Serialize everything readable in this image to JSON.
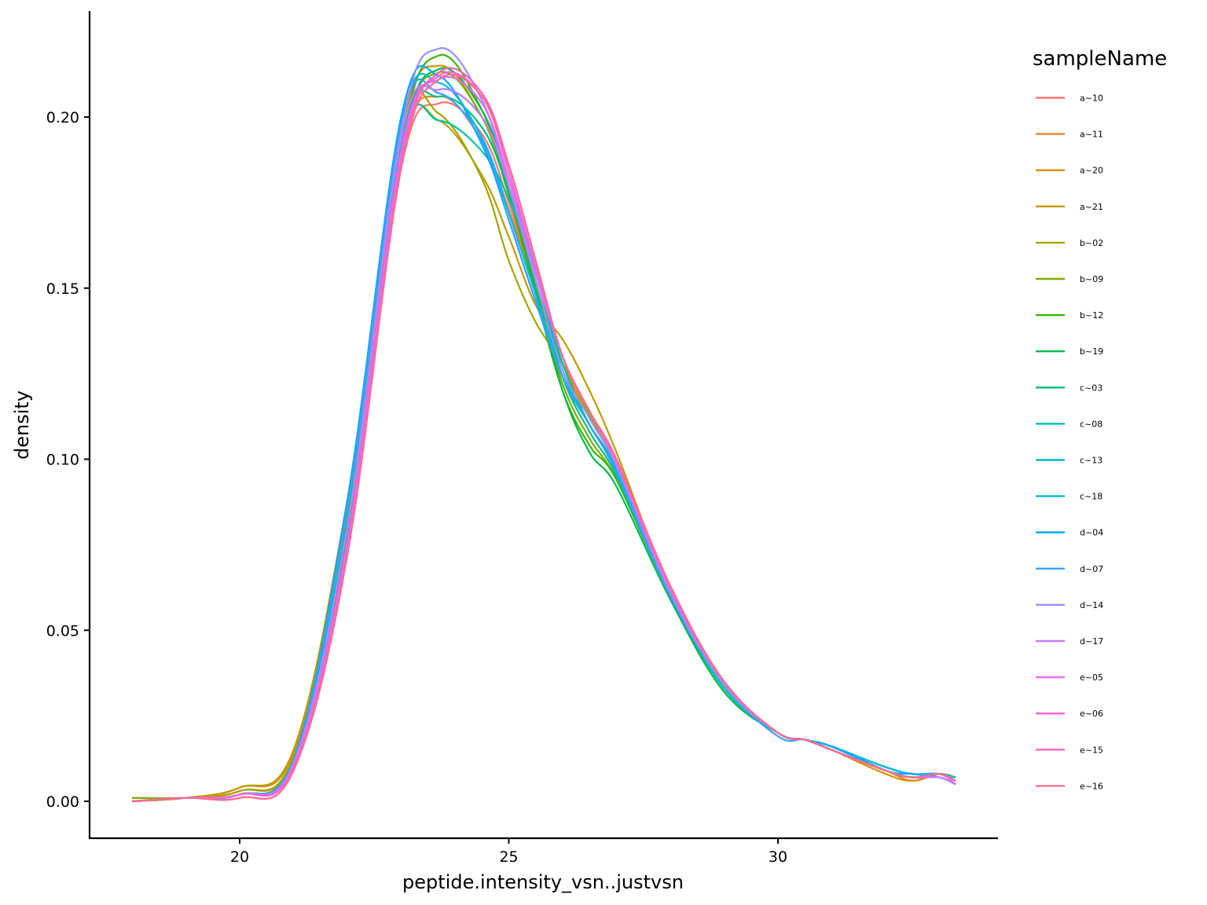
{
  "chart_data": {
    "type": "line",
    "subtype": "density",
    "title": "",
    "xlabel": "peptide.intensity_vsn..justvsn",
    "ylabel": "density",
    "xlim": [
      17.2,
      34.0
    ],
    "ylim": [
      -0.011,
      0.232
    ],
    "x_range_data": [
      18.0,
      33.3
    ],
    "xticks": [
      20,
      25,
      30
    ],
    "xtick_labels": [
      "20",
      "25",
      "30"
    ],
    "yticks": [
      0.0,
      0.05,
      0.1,
      0.15,
      0.2
    ],
    "ytick_labels": [
      "0.00",
      "0.05",
      "0.10",
      "0.15",
      "0.20"
    ],
    "grid": false,
    "legend": {
      "title": "sampleName",
      "position": "right"
    },
    "x": [
      18.0,
      19.0,
      20.0,
      21.0,
      22.0,
      23.0,
      23.7,
      24.5,
      25.0,
      25.5,
      26.0,
      26.5,
      27.0,
      28.0,
      29.0,
      30.0,
      30.5,
      31.0,
      32.0,
      32.5,
      33.0,
      33.3
    ],
    "series": [
      {
        "name": "a~10",
        "color": "#F8766D",
        "values": [
          0.0,
          0.001,
          0.002,
          0.01,
          0.075,
          0.185,
          0.204,
          0.195,
          0.175,
          0.15,
          0.128,
          0.112,
          0.098,
          0.062,
          0.035,
          0.02,
          0.018,
          0.015,
          0.009,
          0.007,
          0.008,
          0.006
        ]
      },
      {
        "name": "a~11",
        "color": "#EA8331",
        "values": [
          0.0,
          0.001,
          0.003,
          0.012,
          0.08,
          0.188,
          0.206,
          0.193,
          0.173,
          0.15,
          0.128,
          0.112,
          0.098,
          0.062,
          0.034,
          0.02,
          0.018,
          0.015,
          0.009,
          0.006,
          0.008,
          0.006
        ]
      },
      {
        "name": "a~20",
        "color": "#D89000",
        "values": [
          0.0,
          0.001,
          0.004,
          0.014,
          0.085,
          0.195,
          0.215,
          0.2,
          0.178,
          0.152,
          0.128,
          0.112,
          0.098,
          0.062,
          0.034,
          0.02,
          0.018,
          0.015,
          0.008,
          0.006,
          0.008,
          0.006
        ]
      },
      {
        "name": "a~21",
        "color": "#C09B00",
        "values": [
          0.0,
          0.001,
          0.004,
          0.015,
          0.088,
          0.192,
          0.199,
          0.183,
          0.165,
          0.145,
          0.135,
          0.12,
          0.102,
          0.062,
          0.034,
          0.02,
          0.018,
          0.016,
          0.009,
          0.007,
          0.008,
          0.006
        ]
      },
      {
        "name": "b~02",
        "color": "#A3A500",
        "values": [
          0.001,
          0.001,
          0.003,
          0.013,
          0.085,
          0.196,
          0.201,
          0.182,
          0.158,
          0.14,
          0.128,
          0.113,
          0.098,
          0.062,
          0.034,
          0.02,
          0.018,
          0.015,
          0.009,
          0.007,
          0.008,
          0.006
        ]
      },
      {
        "name": "b~09",
        "color": "#7CAE00",
        "values": [
          0.001,
          0.001,
          0.002,
          0.011,
          0.078,
          0.19,
          0.213,
          0.2,
          0.177,
          0.15,
          0.122,
          0.106,
          0.094,
          0.06,
          0.033,
          0.02,
          0.018,
          0.016,
          0.009,
          0.007,
          0.008,
          0.007
        ]
      },
      {
        "name": "b~12",
        "color": "#39B600",
        "values": [
          0.0,
          0.001,
          0.002,
          0.011,
          0.078,
          0.192,
          0.218,
          0.202,
          0.178,
          0.148,
          0.12,
          0.104,
          0.094,
          0.06,
          0.033,
          0.02,
          0.018,
          0.016,
          0.009,
          0.007,
          0.008,
          0.007
        ]
      },
      {
        "name": "b~19",
        "color": "#00BB4E",
        "values": [
          0.0,
          0.001,
          0.002,
          0.011,
          0.078,
          0.19,
          0.214,
          0.202,
          0.18,
          0.15,
          0.12,
          0.102,
          0.092,
          0.059,
          0.032,
          0.02,
          0.018,
          0.016,
          0.009,
          0.007,
          0.008,
          0.007
        ]
      },
      {
        "name": "c~03",
        "color": "#00BF7D",
        "values": [
          0.0,
          0.001,
          0.002,
          0.011,
          0.08,
          0.193,
          0.206,
          0.197,
          0.178,
          0.152,
          0.124,
          0.108,
          0.095,
          0.06,
          0.033,
          0.02,
          0.018,
          0.016,
          0.01,
          0.008,
          0.008,
          0.007
        ]
      },
      {
        "name": "c~08",
        "color": "#00C1A3",
        "values": [
          0.0,
          0.001,
          0.002,
          0.011,
          0.082,
          0.192,
          0.199,
          0.19,
          0.176,
          0.155,
          0.128,
          0.11,
          0.097,
          0.061,
          0.033,
          0.02,
          0.018,
          0.016,
          0.01,
          0.008,
          0.008,
          0.007
        ]
      },
      {
        "name": "c~13",
        "color": "#00BFC4",
        "values": [
          0.0,
          0.001,
          0.002,
          0.012,
          0.082,
          0.194,
          0.208,
          0.2,
          0.18,
          0.155,
          0.126,
          0.11,
          0.097,
          0.061,
          0.033,
          0.02,
          0.018,
          0.016,
          0.01,
          0.008,
          0.008,
          0.006
        ]
      },
      {
        "name": "c~18",
        "color": "#00B9E3",
        "values": [
          0.0,
          0.001,
          0.002,
          0.012,
          0.086,
          0.198,
          0.21,
          0.194,
          0.172,
          0.148,
          0.124,
          0.11,
          0.097,
          0.06,
          0.034,
          0.02,
          0.018,
          0.016,
          0.01,
          0.008,
          0.008,
          0.006
        ]
      },
      {
        "name": "d~04",
        "color": "#00A9FF",
        "values": [
          0.0,
          0.001,
          0.002,
          0.012,
          0.088,
          0.2,
          0.212,
          0.192,
          0.17,
          0.146,
          0.124,
          0.11,
          0.096,
          0.06,
          0.034,
          0.02,
          0.018,
          0.016,
          0.009,
          0.008,
          0.007,
          0.005
        ]
      },
      {
        "name": "d~07",
        "color": "#35A2FF",
        "values": [
          0.0,
          0.001,
          0.002,
          0.012,
          0.086,
          0.198,
          0.207,
          0.193,
          0.17,
          0.146,
          0.124,
          0.11,
          0.096,
          0.06,
          0.034,
          0.019,
          0.018,
          0.015,
          0.009,
          0.007,
          0.007,
          0.005
        ]
      },
      {
        "name": "d~14",
        "color": "#9590FF",
        "values": [
          0.0,
          0.001,
          0.002,
          0.011,
          0.08,
          0.196,
          0.22,
          0.205,
          0.18,
          0.152,
          0.126,
          0.112,
          0.098,
          0.061,
          0.034,
          0.02,
          0.018,
          0.015,
          0.009,
          0.007,
          0.007,
          0.005
        ]
      },
      {
        "name": "d~17",
        "color": "#C77CFF",
        "values": [
          0.0,
          0.001,
          0.002,
          0.011,
          0.08,
          0.194,
          0.208,
          0.2,
          0.18,
          0.154,
          0.13,
          0.114,
          0.099,
          0.062,
          0.035,
          0.02,
          0.018,
          0.015,
          0.009,
          0.007,
          0.007,
          0.005
        ]
      },
      {
        "name": "e~05",
        "color": "#E76BF3",
        "values": [
          0.0,
          0.001,
          0.002,
          0.01,
          0.076,
          0.19,
          0.211,
          0.204,
          0.182,
          0.156,
          0.13,
          0.114,
          0.099,
          0.062,
          0.035,
          0.02,
          0.018,
          0.015,
          0.009,
          0.007,
          0.008,
          0.005
        ]
      },
      {
        "name": "e~06",
        "color": "#FA62DB",
        "values": [
          0.0,
          0.001,
          0.002,
          0.01,
          0.074,
          0.188,
          0.212,
          0.206,
          0.184,
          0.156,
          0.13,
          0.114,
          0.099,
          0.062,
          0.035,
          0.02,
          0.018,
          0.015,
          0.009,
          0.007,
          0.008,
          0.006
        ]
      },
      {
        "name": "e~15",
        "color": "#FF62BC",
        "values": [
          0.0,
          0.001,
          0.001,
          0.009,
          0.072,
          0.186,
          0.213,
          0.207,
          0.186,
          0.158,
          0.13,
          0.114,
          0.1,
          0.063,
          0.035,
          0.02,
          0.018,
          0.015,
          0.009,
          0.007,
          0.008,
          0.006
        ]
      },
      {
        "name": "e~16",
        "color": "#FF6C91",
        "values": [
          0.0,
          0.001,
          0.001,
          0.009,
          0.072,
          0.185,
          0.211,
          0.206,
          0.186,
          0.158,
          0.13,
          0.114,
          0.1,
          0.063,
          0.035,
          0.02,
          0.018,
          0.015,
          0.009,
          0.007,
          0.008,
          0.006
        ]
      }
    ]
  }
}
